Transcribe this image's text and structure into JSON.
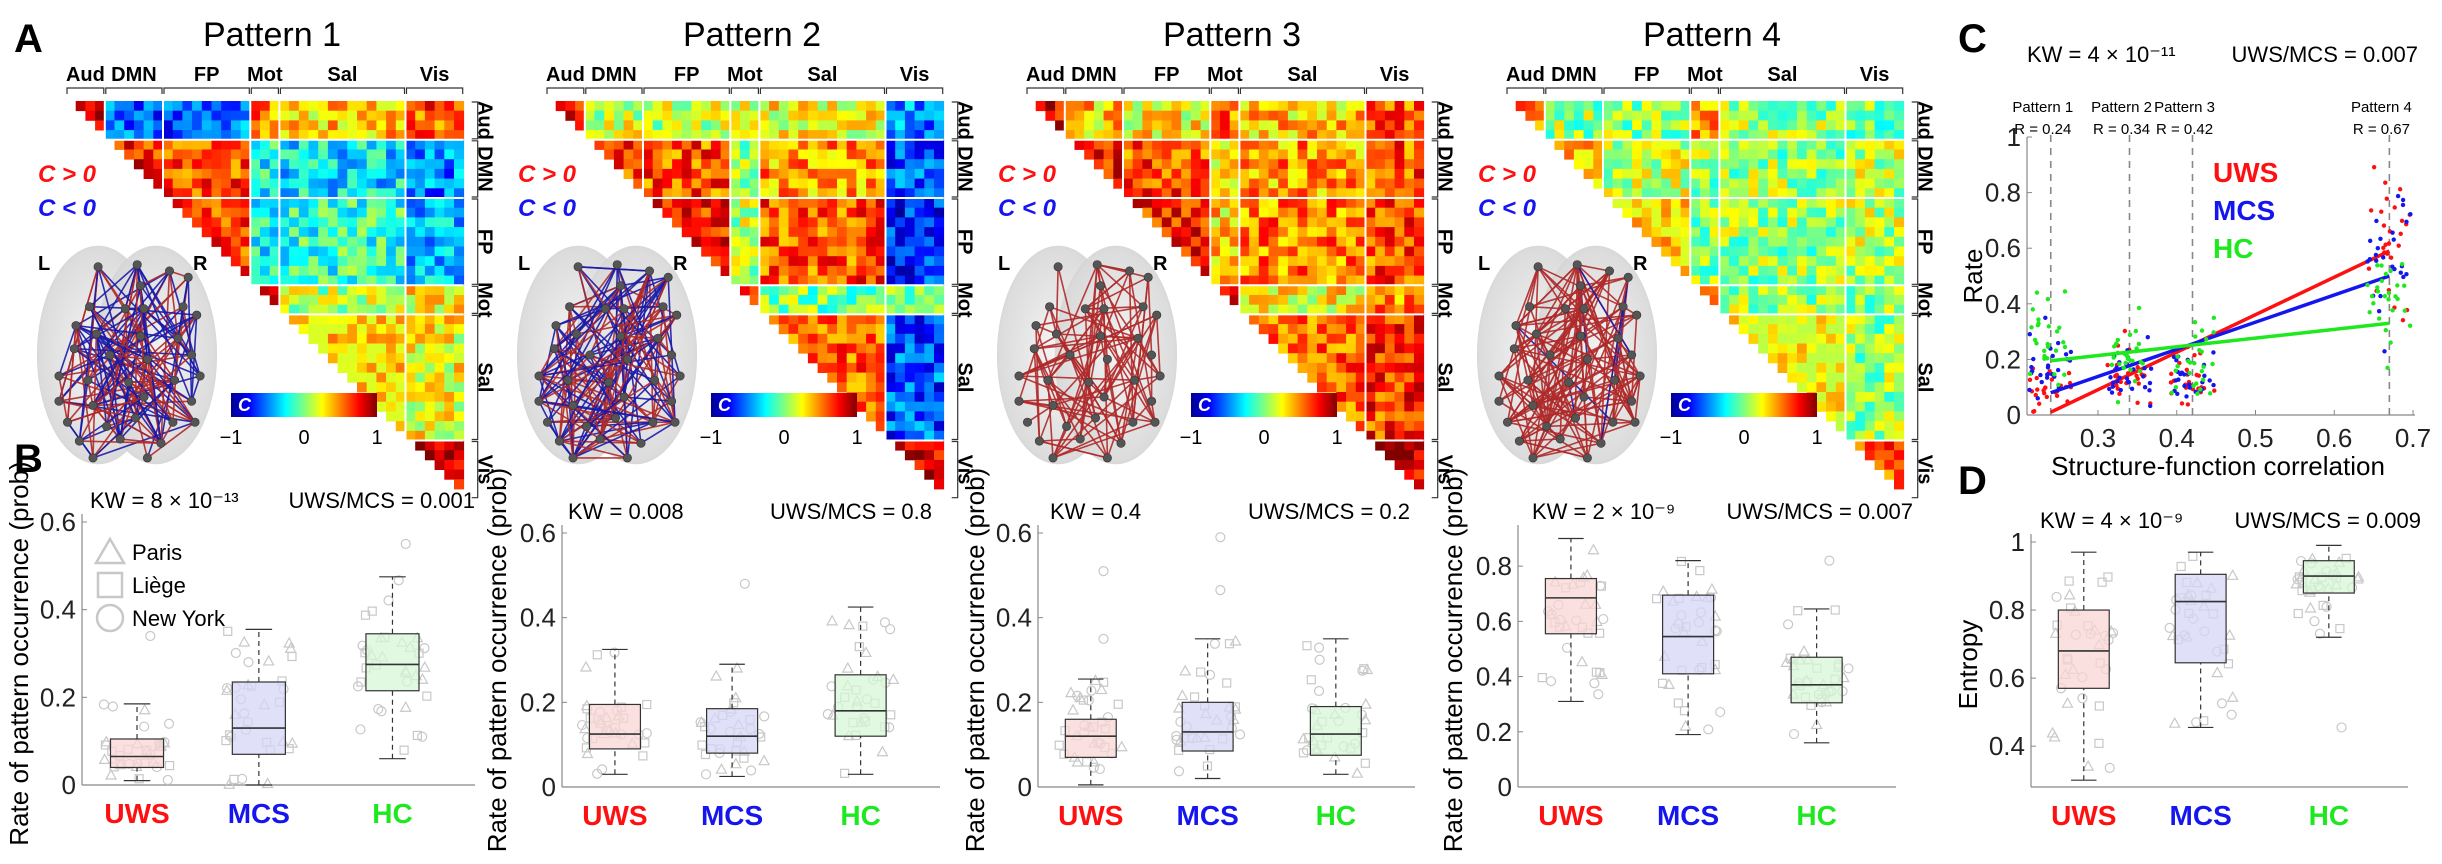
{
  "figure": {
    "panel_letters": [
      "A",
      "B",
      "C",
      "D"
    ],
    "groups": [
      "UWS",
      "MCS",
      "HC"
    ],
    "group_colors": {
      "UWS": "#ff1010",
      "MCS": "#1515ee",
      "HC": "#1ee81e"
    },
    "box_fill_colors": {
      "UWS": "#f9d6d6",
      "MCS": "#d5d5f7",
      "HC": "#d6f7d6"
    },
    "site_legend": [
      {
        "marker": "triangle",
        "label": "Paris"
      },
      {
        "marker": "square",
        "label": "Liège"
      },
      {
        "marker": "circle",
        "label": "New York"
      }
    ],
    "sign_legend": [
      {
        "label": "C > 0",
        "color": "#ff1010"
      },
      {
        "label": "C < 0",
        "color": "#1515ee"
      }
    ],
    "hemisphere_labels": {
      "left": "L",
      "right": "R"
    },
    "colorbar": {
      "label": "C",
      "min_label": "−1",
      "mid_label": "0",
      "max_label": "1",
      "range": [
        -1,
        1
      ],
      "colormap": "jet"
    }
  },
  "networks": [
    {
      "name": "Aud",
      "nodes": 4
    },
    {
      "name": "DMN",
      "nodes": 6
    },
    {
      "name": "FP",
      "nodes": 9
    },
    {
      "name": "Mot",
      "nodes": 3
    },
    {
      "name": "Sal",
      "nodes": 13
    },
    {
      "name": "Vis",
      "nodes": 6
    }
  ],
  "chart_data": [
    {
      "type": "heatmap",
      "panel": "A",
      "title": "Pattern 1",
      "description": "Upper-triangular connectivity-pattern matrix; block-average C values between networks (order Aud, DMN, FP, Mot, Sal, Vis)",
      "block_means": [
        [
          0.8,
          -0.6,
          -0.55,
          0.5,
          0.35,
          0.6
        ],
        [
          null,
          0.7,
          0.6,
          -0.2,
          -0.3,
          -0.5
        ],
        [
          null,
          null,
          0.65,
          -0.2,
          -0.15,
          -0.4
        ],
        [
          null,
          null,
          null,
          0.8,
          0.1,
          0.25
        ],
        [
          null,
          null,
          null,
          null,
          0.3,
          0.25
        ],
        [
          null,
          null,
          null,
          null,
          null,
          0.85
        ]
      ],
      "range": [
        -1,
        1
      ],
      "brain_edges": {
        "positive_share": 0.45
      }
    },
    {
      "type": "heatmap",
      "panel": "A",
      "title": "Pattern 2",
      "block_means": [
        [
          0.75,
          0.15,
          0.12,
          0.2,
          0.25,
          -0.5
        ],
        [
          null,
          0.65,
          0.6,
          0.05,
          0.45,
          -0.6
        ],
        [
          null,
          null,
          0.7,
          0.1,
          0.6,
          -0.7
        ],
        [
          null,
          null,
          null,
          0.7,
          0.0,
          0.0
        ],
        [
          null,
          null,
          null,
          null,
          0.55,
          -0.6
        ],
        [
          null,
          null,
          null,
          null,
          null,
          0.85
        ]
      ],
      "range": [
        -1,
        1
      ],
      "brain_edges": {
        "positive_share": 0.55
      }
    },
    {
      "type": "heatmap",
      "panel": "A",
      "title": "Pattern 3",
      "block_means": [
        [
          0.8,
          0.35,
          0.25,
          0.55,
          0.35,
          0.55
        ],
        [
          null,
          0.7,
          0.6,
          0.3,
          0.45,
          0.6
        ],
        [
          null,
          null,
          0.7,
          0.35,
          0.5,
          0.6
        ],
        [
          null,
          null,
          null,
          0.75,
          0.25,
          0.45
        ],
        [
          null,
          null,
          null,
          null,
          0.55,
          0.65
        ],
        [
          null,
          null,
          null,
          null,
          null,
          0.85
        ]
      ],
      "range": [
        -1,
        1
      ],
      "brain_edges": {
        "positive_share": 1.0
      }
    },
    {
      "type": "heatmap",
      "panel": "A",
      "title": "Pattern 4",
      "block_means": [
        [
          0.55,
          0.05,
          0.05,
          0.4,
          0.05,
          0.0
        ],
        [
          null,
          0.35,
          0.15,
          0.05,
          0.05,
          0.12
        ],
        [
          null,
          null,
          0.3,
          0.05,
          0.05,
          0.12
        ],
        [
          null,
          null,
          null,
          0.55,
          0.05,
          0.05
        ],
        [
          null,
          null,
          null,
          null,
          0.2,
          0.05
        ],
        [
          null,
          null,
          null,
          null,
          null,
          0.6
        ]
      ],
      "range": [
        -1,
        1
      ],
      "brain_edges": {
        "positive_share": 0.95
      }
    },
    {
      "type": "box",
      "panel": "B",
      "pattern": "Pattern 1",
      "stat_left": "KW = 8 × 10⁻¹³",
      "stat_right": "UWS/MCS = 0.001",
      "ylabel": "Rate of pattern occurrence (prob)",
      "ylim": [
        0,
        0.6
      ],
      "yticks": [
        0,
        0.2,
        0.4,
        0.6
      ],
      "ytick_labels": [
        "0",
        "0.2",
        "0.4",
        "0.6"
      ],
      "categories": [
        "UWS",
        "MCS",
        "HC"
      ],
      "boxes": [
        {
          "whisker_low": 0.01,
          "q1": 0.04,
          "median": 0.065,
          "q3": 0.105,
          "whisker_high": 0.185,
          "outliers": [
            0.34
          ]
        },
        {
          "whisker_low": 0.0,
          "q1": 0.07,
          "median": 0.13,
          "q3": 0.235,
          "whisker_high": 0.355,
          "outliers": []
        },
        {
          "whisker_low": 0.06,
          "q1": 0.215,
          "median": 0.275,
          "q3": 0.345,
          "whisker_high": 0.475,
          "outliers": [
            0.55
          ]
        }
      ],
      "show_site_legend": true
    },
    {
      "type": "box",
      "panel": "B",
      "pattern": "Pattern 2",
      "stat_left": "KW = 0.008",
      "stat_right": "UWS/MCS = 0.8",
      "ylabel": "Rate of pattern occurrence (prob)",
      "ylim": [
        0,
        0.6
      ],
      "yticks": [
        0,
        0.2,
        0.4,
        0.6
      ],
      "ytick_labels": [
        "0",
        "0.2",
        "0.4",
        "0.6"
      ],
      "categories": [
        "UWS",
        "MCS",
        "HC"
      ],
      "boxes": [
        {
          "whisker_low": 0.03,
          "q1": 0.09,
          "median": 0.125,
          "q3": 0.195,
          "whisker_high": 0.325,
          "outliers": []
        },
        {
          "whisker_low": 0.025,
          "q1": 0.08,
          "median": 0.12,
          "q3": 0.185,
          "whisker_high": 0.29,
          "outliers": [
            0.48
          ]
        },
        {
          "whisker_low": 0.03,
          "q1": 0.12,
          "median": 0.18,
          "q3": 0.265,
          "whisker_high": 0.425,
          "outliers": []
        }
      ],
      "show_site_legend": false
    },
    {
      "type": "box",
      "panel": "B",
      "pattern": "Pattern 3",
      "stat_left": "KW = 0.4",
      "stat_right": "UWS/MCS = 0.2",
      "ylabel": "Rate of pattern occurrence (prob)",
      "ylim": [
        0,
        0.6
      ],
      "yticks": [
        0,
        0.2,
        0.4,
        0.6
      ],
      "ytick_labels": [
        "0",
        "0.2",
        "0.4",
        "0.6"
      ],
      "categories": [
        "UWS",
        "MCS",
        "HC"
      ],
      "boxes": [
        {
          "whisker_low": 0.005,
          "q1": 0.07,
          "median": 0.12,
          "q3": 0.16,
          "whisker_high": 0.255,
          "outliers": [
            0.35,
            0.51
          ]
        },
        {
          "whisker_low": 0.02,
          "q1": 0.085,
          "median": 0.13,
          "q3": 0.2,
          "whisker_high": 0.35,
          "outliers": [
            0.465,
            0.59
          ]
        },
        {
          "whisker_low": 0.03,
          "q1": 0.075,
          "median": 0.125,
          "q3": 0.19,
          "whisker_high": 0.35,
          "outliers": []
        }
      ],
      "show_site_legend": false
    },
    {
      "type": "box",
      "panel": "B",
      "pattern": "Pattern 4",
      "stat_left": "KW = 2 × 10⁻⁹",
      "stat_right": "UWS/MCS = 0.007",
      "ylabel": "Rate of pattern occurrence (prob)",
      "ylim": [
        0,
        0.92
      ],
      "yticks": [
        0,
        0.2,
        0.4,
        0.6,
        0.8
      ],
      "ytick_labels": [
        "0",
        "0.2",
        "0.4",
        "0.6",
        "0.8"
      ],
      "categories": [
        "UWS",
        "MCS",
        "HC"
      ],
      "boxes": [
        {
          "whisker_low": 0.31,
          "q1": 0.555,
          "median": 0.685,
          "q3": 0.755,
          "whisker_high": 0.9,
          "outliers": []
        },
        {
          "whisker_low": 0.19,
          "q1": 0.41,
          "median": 0.545,
          "q3": 0.695,
          "whisker_high": 0.82,
          "outliers": []
        },
        {
          "whisker_low": 0.16,
          "q1": 0.305,
          "median": 0.37,
          "q3": 0.47,
          "whisker_high": 0.645,
          "outliers": [
            0.82
          ]
        }
      ],
      "show_site_legend": false
    },
    {
      "type": "scatter",
      "panel": "C",
      "stat_left": "KW = 4 × 10⁻¹¹",
      "stat_right": "UWS/MCS = 0.007",
      "xlabel": "Structure-function correlation",
      "ylabel": "Rate",
      "xlim": [
        0.22,
        0.7
      ],
      "ylim": [
        0,
        1
      ],
      "xticks": [
        0.3,
        0.4,
        0.5,
        0.6,
        0.7
      ],
      "xtick_labels": [
        "0.3",
        "0.4",
        "0.5",
        "0.6",
        "0.7"
      ],
      "yticks": [
        0,
        0.2,
        0.4,
        0.6,
        0.8,
        1
      ],
      "ytick_labels": [
        "0",
        "0.2",
        "0.4",
        "0.6",
        "0.8",
        "1"
      ],
      "pattern_markers": [
        {
          "name": "Pattern 1",
          "r_label": "R = 0.24",
          "x": 0.24
        },
        {
          "name": "Pattern 2",
          "r_label": "R = 0.34",
          "x": 0.34
        },
        {
          "name": "Pattern 3",
          "r_label": "R = 0.42",
          "x": 0.42
        },
        {
          "name": "Pattern 4",
          "r_label": "R = 0.67",
          "x": 0.67
        }
      ],
      "series": [
        {
          "name": "UWS",
          "fit_line": {
            "x": [
              0.24,
              0.67
            ],
            "y": [
              0.01,
              0.59
            ]
          },
          "cluster_medians": [
            0.065,
            0.125,
            0.12,
            0.685
          ]
        },
        {
          "name": "MCS",
          "fit_line": {
            "x": [
              0.24,
              0.67
            ],
            "y": [
              0.08,
              0.5
            ]
          },
          "cluster_medians": [
            0.13,
            0.12,
            0.13,
            0.545
          ]
        },
        {
          "name": "HC",
          "fit_line": {
            "x": [
              0.24,
              0.67
            ],
            "y": [
              0.195,
              0.33
            ]
          },
          "cluster_medians": [
            0.275,
            0.18,
            0.125,
            0.37
          ]
        }
      ],
      "legend": [
        "UWS",
        "MCS",
        "HC"
      ]
    },
    {
      "type": "box",
      "panel": "D",
      "stat_left": "KW = 4 × 10⁻⁹",
      "stat_right": "UWS/MCS = 0.009",
      "ylabel": "Entropy",
      "ylim": [
        0.28,
        1.0
      ],
      "yticks": [
        0.4,
        0.6,
        0.8,
        1
      ],
      "ytick_labels": [
        "0.4",
        "0.6",
        "0.8",
        "1"
      ],
      "categories": [
        "UWS",
        "MCS",
        "HC"
      ],
      "boxes": [
        {
          "whisker_low": 0.3,
          "q1": 0.57,
          "median": 0.68,
          "q3": 0.8,
          "whisker_high": 0.97,
          "outliers": []
        },
        {
          "whisker_low": 0.455,
          "q1": 0.645,
          "median": 0.825,
          "q3": 0.905,
          "whisker_high": 0.97,
          "outliers": []
        },
        {
          "whisker_low": 0.72,
          "q1": 0.85,
          "median": 0.9,
          "q3": 0.945,
          "whisker_high": 0.99,
          "outliers": [
            0.455
          ]
        }
      ],
      "show_site_legend": false
    }
  ]
}
